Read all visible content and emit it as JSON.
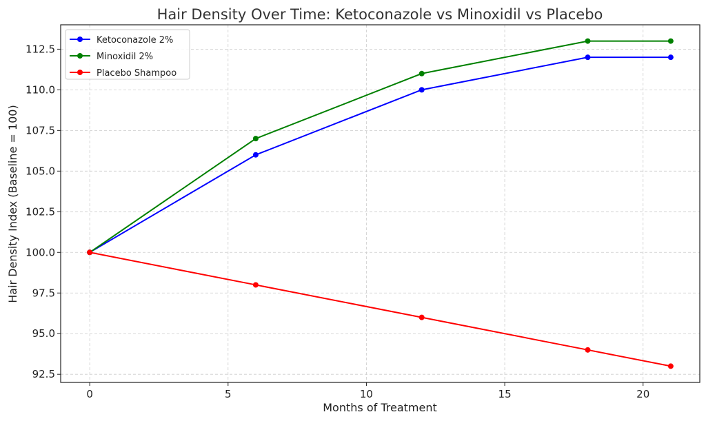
{
  "chart_data": {
    "type": "line",
    "title": "Hair Density Over Time: Ketoconazole vs Minoxidil vs Placebo",
    "xlabel": "Months of Treatment",
    "ylabel": "Hair Density Index (Baseline = 100)",
    "x": [
      0,
      6,
      12,
      18,
      21
    ],
    "xlim": [
      -1.05,
      22.05
    ],
    "ylim": [
      92.0,
      114.0
    ],
    "xticks": [
      0,
      5,
      10,
      15,
      20
    ],
    "yticks": [
      92.5,
      95.0,
      97.5,
      100.0,
      102.5,
      105.0,
      107.5,
      110.0,
      112.5
    ],
    "xtick_labels": [
      "0",
      "5",
      "10",
      "15",
      "20"
    ],
    "ytick_labels": [
      "92.5",
      "95.0",
      "97.5",
      "100.0",
      "102.5",
      "105.0",
      "107.5",
      "110.0",
      "112.5"
    ],
    "grid": true,
    "legend_position": "top-left",
    "series": [
      {
        "name": "Ketoconazole 2%",
        "color": "#0000ff",
        "values": [
          100,
          106,
          110,
          112,
          112
        ]
      },
      {
        "name": "Minoxidil 2%",
        "color": "#008000",
        "values": [
          100,
          107,
          111,
          113,
          113
        ]
      },
      {
        "name": "Placebo Shampoo",
        "color": "#ff0000",
        "values": [
          100,
          98,
          96,
          94,
          93
        ]
      }
    ]
  }
}
